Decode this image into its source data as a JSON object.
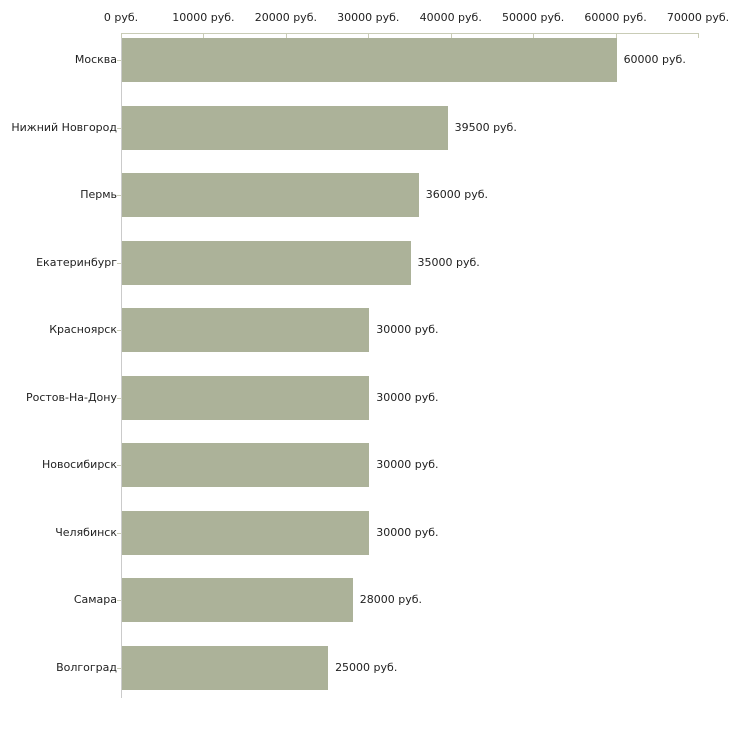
{
  "chart_data": {
    "type": "bar",
    "orientation": "horizontal",
    "title": "",
    "categories": [
      "Москва",
      "Нижний Новгород",
      "Пермь",
      "Екатеринбург",
      "Красноярск",
      "Ростов-На-Дону",
      "Новосибирск",
      "Челябинск",
      "Самара",
      "Волгоград"
    ],
    "values": [
      60000,
      39500,
      36000,
      35000,
      30000,
      30000,
      30000,
      30000,
      28000,
      25000
    ],
    "value_labels": [
      "60000 руб.",
      "39500 руб.",
      "36000 руб.",
      "35000 руб.",
      "30000 руб.",
      "30000 руб.",
      "30000 руб.",
      "30000 руб.",
      "28000 руб.",
      "25000 руб."
    ],
    "x_ticks": [
      0,
      10000,
      20000,
      30000,
      40000,
      50000,
      60000,
      70000
    ],
    "x_tick_labels": [
      "0 руб.",
      "10000 руб.",
      "20000 руб.",
      "30000 руб.",
      "40000 руб.",
      "50000 руб.",
      "60000 руб.",
      "70000 руб."
    ],
    "xlim": [
      0,
      70000
    ],
    "unit": "руб.",
    "xlabel": "",
    "ylabel": "",
    "grid": false,
    "legend": null,
    "colors": {
      "bar": "#acb299",
      "axis_tick": "#c9ccb6",
      "axis_line_vertical": "#cbcbcb",
      "text": "#222222",
      "background": "#ffffff"
    }
  }
}
